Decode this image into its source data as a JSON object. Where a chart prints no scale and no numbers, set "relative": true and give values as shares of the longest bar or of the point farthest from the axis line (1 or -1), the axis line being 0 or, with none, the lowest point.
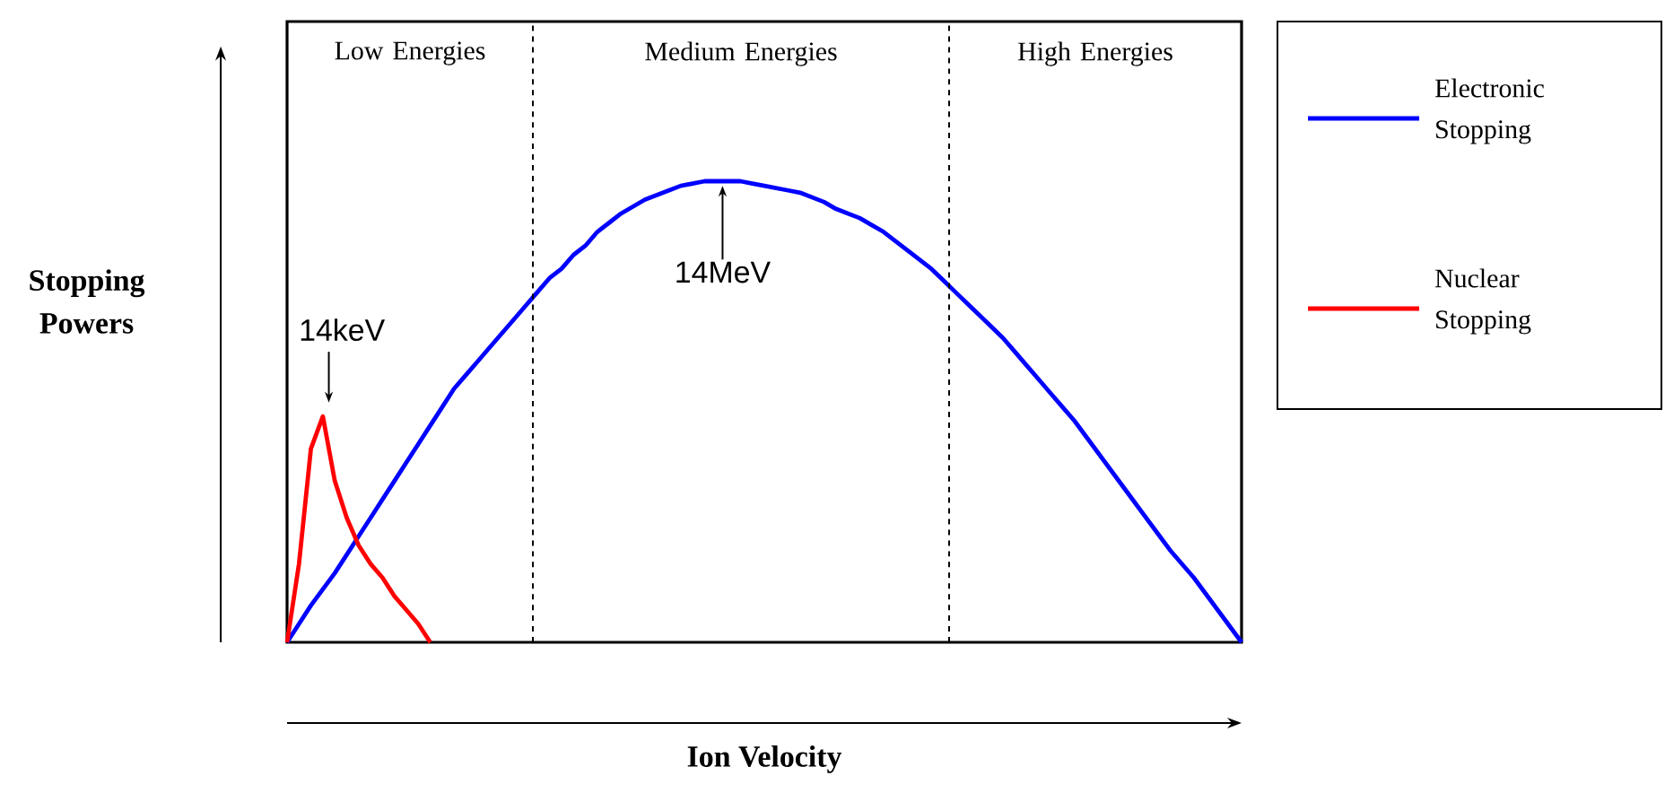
{
  "chart_data": {
    "type": "line",
    "relative": true,
    "xlabel": "Ion Velocity",
    "ylabel": "Stopping Powers",
    "legend": "right",
    "line_style": "solid",
    "categories": [
      null,
      null,
      null,
      null,
      null,
      null,
      null,
      null,
      null,
      null,
      null,
      null,
      null,
      null,
      null,
      null,
      null,
      null,
      null,
      null,
      null,
      null,
      null,
      null,
      null,
      null,
      null,
      null,
      null,
      null,
      null,
      null,
      null,
      null,
      null,
      null,
      null,
      null,
      null,
      null,
      null,
      null,
      null,
      null,
      null,
      null,
      null,
      null,
      null,
      null,
      null,
      null,
      null,
      null,
      null,
      null,
      null,
      null,
      null,
      null,
      null,
      null,
      null,
      null,
      null,
      null,
      null,
      null,
      null,
      null,
      null,
      null,
      null,
      null,
      null,
      null,
      null,
      null,
      null,
      null,
      null
    ],
    "series": [
      {
        "name": "Electronic Stopping",
        "color": "#0000ff",
        "values": [
          0,
          0.04,
          0.08,
          0.115,
          0.15,
          0.19,
          0.23,
          0.27,
          0.31,
          0.35,
          0.39,
          0.43,
          0.47,
          0.51,
          0.55,
          0.58,
          0.61,
          0.64,
          0.67,
          0.7,
          0.73,
          0.76,
          0.79,
          0.81,
          0.84,
          0.86,
          0.89,
          0.91,
          0.93,
          0.945,
          0.96,
          0.97,
          0.98,
          0.99,
          0.995,
          1.0,
          1.0,
          1.0,
          1.0,
          0.995,
          0.99,
          0.985,
          0.98,
          0.975,
          0.965,
          0.955,
          0.94,
          0.93,
          0.92,
          0.905,
          0.89,
          0.87,
          0.85,
          0.83,
          0.81,
          0.785,
          0.76,
          0.735,
          0.71,
          0.685,
          0.66,
          0.63,
          0.6,
          0.57,
          0.54,
          0.51,
          0.48,
          0.445,
          0.41,
          0.375,
          0.34,
          0.305,
          0.27,
          0.235,
          0.2,
          0.17,
          0.14,
          0.105,
          0.07,
          0.035,
          0
        ]
      },
      {
        "name": "Nuclear Stopping",
        "color": "#ff0000",
        "values": [
          0,
          0.17,
          0.42,
          0.49,
          0.35,
          0.27,
          0.21,
          0.17,
          0.14,
          0.1,
          0.07,
          0.04,
          0,
          null,
          null,
          null,
          null,
          null,
          null,
          null,
          null,
          null,
          null,
          null,
          null,
          null,
          null,
          null,
          null,
          null,
          null,
          null,
          null,
          null,
          null,
          null,
          null,
          null,
          null,
          null,
          null,
          null,
          null,
          null,
          null,
          null,
          null,
          null,
          null,
          null,
          null,
          null,
          null,
          null,
          null,
          null,
          null,
          null,
          null,
          null,
          null,
          null,
          null,
          null,
          null,
          null,
          null,
          null,
          null,
          null,
          null,
          null,
          null,
          null,
          null,
          null,
          null,
          null,
          null,
          null,
          null
        ]
      }
    ],
    "annotations": [
      "Low Energies",
      "Medium Energies",
      "High Energies",
      "14keV",
      "14MeV"
    ]
  }
}
